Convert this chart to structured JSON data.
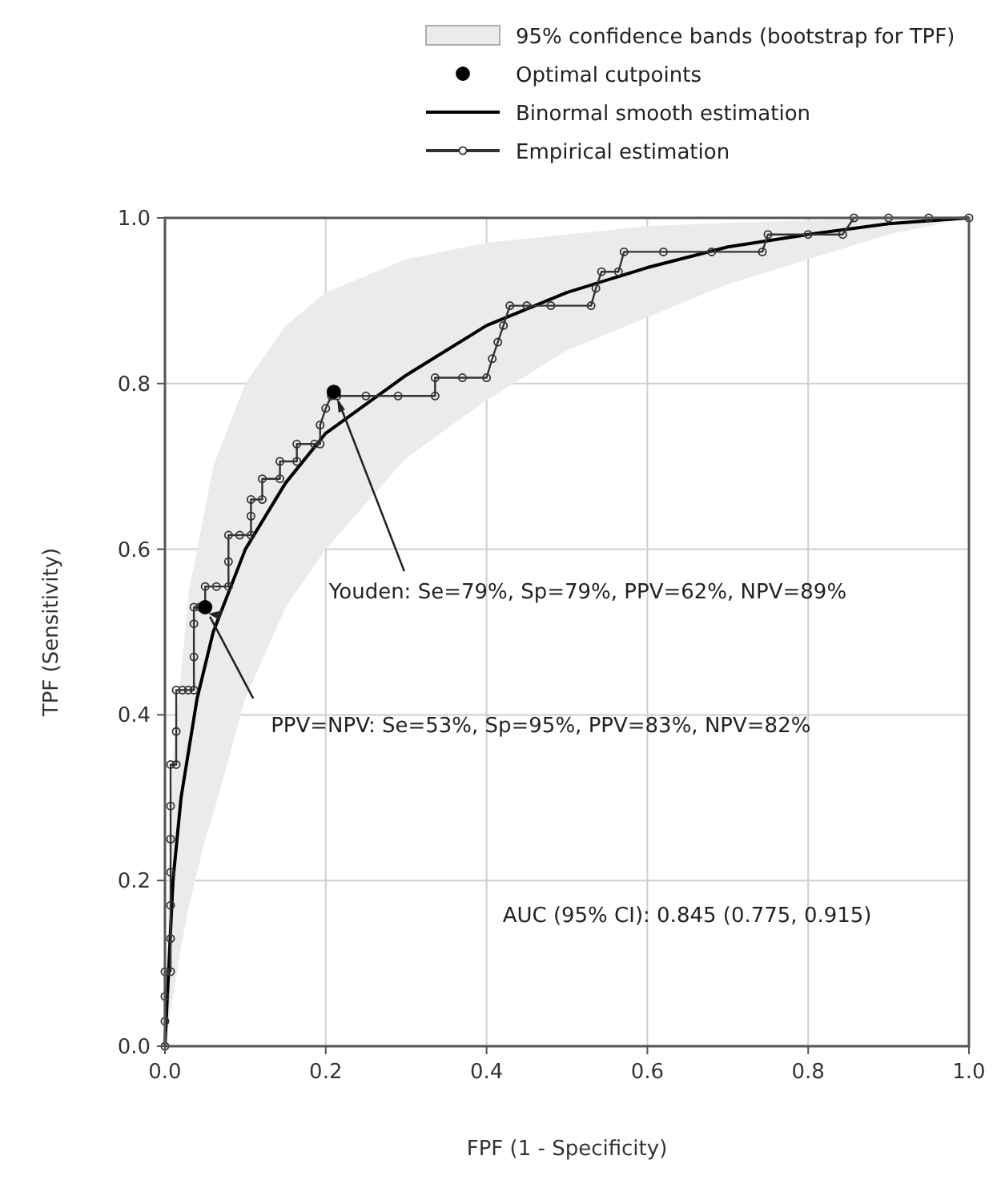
{
  "chart_data": {
    "type": "line",
    "xlabel": "FPF (1 - Specificity)",
    "ylabel": "TPF (Sensitivity)",
    "xlim": [
      0,
      1
    ],
    "ylim": [
      0,
      1
    ],
    "xticks": [
      {
        "value": 0,
        "label": "0.0"
      },
      {
        "value": 0.2,
        "label": "0.2"
      },
      {
        "value": 0.4,
        "label": "0.4"
      },
      {
        "value": 0.6,
        "label": "0.6"
      },
      {
        "value": 0.8,
        "label": "0.8"
      },
      {
        "value": 1,
        "label": "1.0"
      }
    ],
    "yticks": [
      {
        "value": 0,
        "label": "0.0"
      },
      {
        "value": 0.2,
        "label": "0.2"
      },
      {
        "value": 0.4,
        "label": "0.4"
      },
      {
        "value": 0.6,
        "label": "0.6"
      },
      {
        "value": 0.8,
        "label": "0.8"
      },
      {
        "value": 1,
        "label": "1.0"
      }
    ],
    "grid": true,
    "legend": "top",
    "series": [
      {
        "name": "95% confidence bands (bootstrap for TPF)",
        "type": "area",
        "color": "#ebebeb",
        "x": [
          0,
          0.01,
          0.02,
          0.03,
          0.05,
          0.06,
          0.1,
          0.15,
          0.2,
          0.3,
          0.4,
          0.5,
          0.6,
          0.7,
          0.8,
          0.9,
          1
        ],
        "values": [
          null,
          null,
          null,
          null,
          null,
          null,
          null,
          null,
          null,
          null,
          null,
          null,
          null,
          null,
          null,
          null,
          null
        ],
        "upper": [
          0,
          0.35,
          0.45,
          0.55,
          0.65,
          0.7,
          0.8,
          0.87,
          0.91,
          0.95,
          0.97,
          0.98,
          0.99,
          0.994,
          0.997,
          0.999,
          1
        ],
        "lower": [
          0,
          0.06,
          0.12,
          0.17,
          0.25,
          0.28,
          0.42,
          0.53,
          0.6,
          0.71,
          0.78,
          0.84,
          0.88,
          0.92,
          0.95,
          0.98,
          1
        ]
      },
      {
        "name": "Binormal smooth estimation",
        "color": "#000000",
        "marker": "none",
        "x": [
          0,
          0.005,
          0.01,
          0.02,
          0.04,
          0.06,
          0.1,
          0.15,
          0.2,
          0.3,
          0.4,
          0.5,
          0.6,
          0.7,
          0.8,
          0.9,
          1
        ],
        "values": [
          0,
          0.1,
          0.2,
          0.3,
          0.42,
          0.5,
          0.6,
          0.68,
          0.74,
          0.81,
          0.87,
          0.91,
          0.94,
          0.965,
          0.98,
          0.993,
          1
        ]
      },
      {
        "name": "Empirical estimation",
        "color": "#333333",
        "marker": "circle",
        "x": [
          0,
          0,
          0,
          0,
          0.007,
          0.007,
          0.007,
          0.007,
          0.007,
          0.007,
          0.007,
          0.014,
          0.014,
          0.014,
          0.022,
          0.029,
          0.036,
          0.036,
          0.036,
          0.036,
          0.043,
          0.05,
          0.05,
          0.064,
          0.079,
          0.079,
          0.079,
          0.093,
          0.107,
          0.107,
          0.107,
          0.121,
          0.121,
          0.143,
          0.143,
          0.164,
          0.164,
          0.186,
          0.193,
          0.193,
          0.2,
          0.207,
          0.214,
          0.25,
          0.29,
          0.336,
          0.336,
          0.37,
          0.4,
          0.407,
          0.414,
          0.421,
          0.429,
          0.45,
          0.48,
          0.53,
          0.536,
          0.543,
          0.564,
          0.571,
          0.62,
          0.68,
          0.743,
          0.75,
          0.8,
          0.843,
          0.857,
          0.9,
          0.95,
          1
        ],
        "values": [
          0,
          0.03,
          0.06,
          0.09,
          0.09,
          0.13,
          0.17,
          0.21,
          0.25,
          0.29,
          0.34,
          0.34,
          0.38,
          0.43,
          0.43,
          0.43,
          0.43,
          0.47,
          0.51,
          0.53,
          0.53,
          0.53,
          0.555,
          0.555,
          0.555,
          0.585,
          0.617,
          0.617,
          0.617,
          0.64,
          0.66,
          0.66,
          0.685,
          0.685,
          0.706,
          0.706,
          0.727,
          0.727,
          0.727,
          0.75,
          0.77,
          0.785,
          0.785,
          0.785,
          0.785,
          0.785,
          0.807,
          0.807,
          0.807,
          0.83,
          0.85,
          0.87,
          0.894,
          0.894,
          0.894,
          0.894,
          0.915,
          0.935,
          0.935,
          0.959,
          0.959,
          0.959,
          0.959,
          0.98,
          0.98,
          0.98,
          1,
          1,
          1,
          1
        ]
      },
      {
        "name": "Optimal cutpoints",
        "type": "scatter",
        "color": "#000000",
        "marker": "circle",
        "x": [
          0.21,
          0.05
        ],
        "values": [
          0.79,
          0.53
        ]
      }
    ],
    "annotations": [
      {
        "text": "Youden: Se=79%, Sp=79%, PPV=62%, NPV=89%",
        "x": 0.21,
        "y": 0.79
      },
      {
        "text": "PPV=NPV: Se=53%, Sp=95%, PPV=83%, NPV=82%",
        "x": 0.05,
        "y": 0.53
      },
      "AUC (95% CI): 0.845 (0.775, 0.915)"
    ]
  }
}
